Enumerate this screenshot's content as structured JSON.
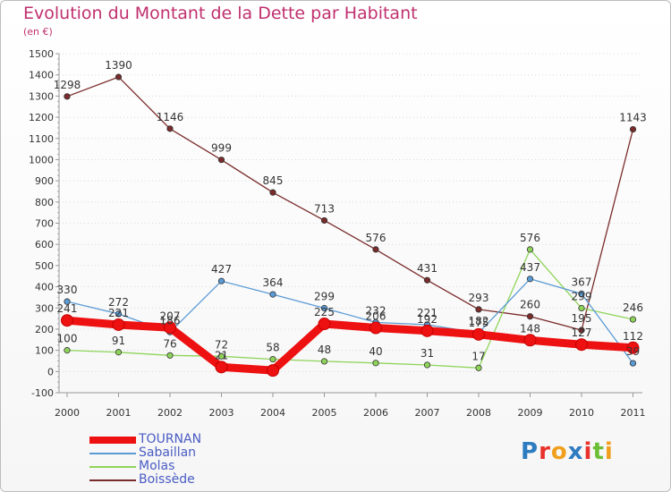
{
  "header": {
    "title": "Evolution du Montant de la Dette par Habitant",
    "unit": "(en €)"
  },
  "logo": {
    "text": "Proxiti",
    "letter_colors": [
      "#2e7cc0",
      "#e8322b",
      "#f0a01e",
      "#2e7cc0",
      "#e8322b",
      "#6cbf35",
      "#f0a01e"
    ]
  },
  "chart_data": {
    "type": "line",
    "title": "Evolution du Montant de la Dette par Habitant",
    "ylabel": "(en €)",
    "xlabel": "",
    "ylim": [
      -100,
      1500
    ],
    "y_ticks": [
      "-100",
      "0",
      "100",
      "200",
      "300",
      "400",
      "500",
      "600",
      "700",
      "800",
      "900",
      "1000",
      "1100",
      "1200",
      "1300",
      "1400",
      "1500"
    ],
    "categories": [
      "2000",
      "2001",
      "2002",
      "2003",
      "2004",
      "2005",
      "2006",
      "2007",
      "2008",
      "2009",
      "2010",
      "2011"
    ],
    "grid": "dotted horizontal",
    "legend_position": "bottom-left",
    "series": [
      {
        "name": "TOURNAN",
        "color": "#ee1111",
        "bold": true,
        "values": [
          241,
          221,
          207,
          21,
          5,
          225,
          206,
          192,
          175,
          148,
          127,
          112
        ],
        "labels": [
          "241",
          "221",
          "207",
          "21",
          "",
          "225",
          "206",
          "192",
          "175",
          "148",
          "127",
          "112"
        ]
      },
      {
        "name": "Sabaillan",
        "color": "#5b9bd5",
        "values": [
          330,
          272,
          186,
          427,
          364,
          299,
          232,
          221,
          182,
          437,
          367,
          39
        ],
        "labels": [
          "330",
          "272",
          "186",
          "427",
          "364",
          "299",
          "232",
          "221",
          "182",
          "437",
          "367",
          "39"
        ]
      },
      {
        "name": "Molas",
        "color": "#8fd45a",
        "values": [
          100,
          91,
          76,
          72,
          58,
          48,
          40,
          31,
          17,
          576,
          299,
          246
        ],
        "labels": [
          "100",
          "91",
          "76",
          "72",
          "58",
          "48",
          "40",
          "31",
          "17",
          "576",
          "299",
          "246"
        ]
      },
      {
        "name": "Boissède",
        "color": "#7a2b2b",
        "values": [
          1298,
          1390,
          1146,
          999,
          845,
          713,
          576,
          431,
          293,
          260,
          195,
          1143
        ],
        "labels": [
          "1298",
          "1390",
          "1146",
          "999",
          "845",
          "713",
          "576",
          "431",
          "293",
          "260",
          "195",
          "1143"
        ]
      }
    ]
  }
}
